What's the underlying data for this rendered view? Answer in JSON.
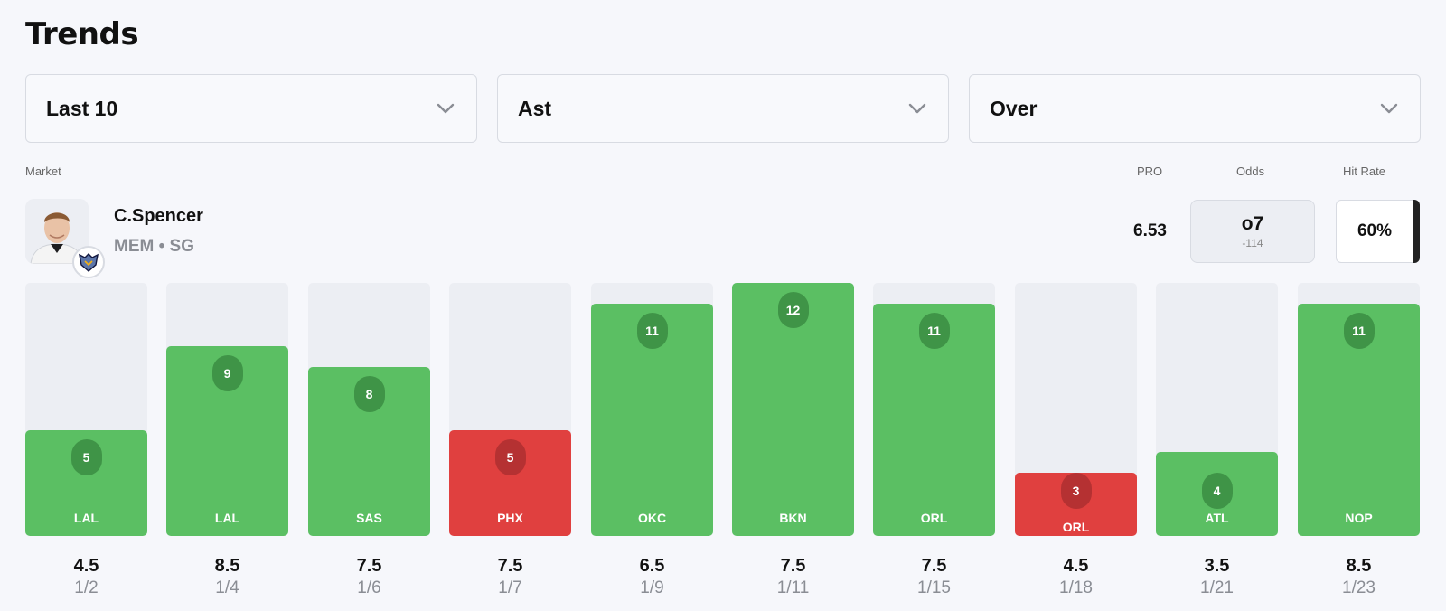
{
  "title": "Trends",
  "filters": [
    {
      "label": "Last 10"
    },
    {
      "label": "Ast"
    },
    {
      "label": "Over"
    }
  ],
  "labels": {
    "market": "Market",
    "pro": "PRO",
    "odds": "Odds",
    "hit_rate": "Hit Rate"
  },
  "player": {
    "name": "C.Spencer",
    "team_pos": "MEM • SG",
    "pro": "6.53",
    "odds_main": "o7",
    "odds_sub": "-114",
    "hit_rate": "60%"
  },
  "colors": {
    "hit": "#5bbf63",
    "miss": "#e0403f",
    "track": "#eceef3"
  },
  "chart_data": {
    "type": "bar",
    "title": "Trends",
    "max_value": 12,
    "categories": [
      "LAL",
      "LAL",
      "SAS",
      "PHX",
      "OKC",
      "BKN",
      "ORL",
      "ORL",
      "ATL",
      "NOP"
    ],
    "values": [
      5,
      9,
      8,
      5,
      11,
      12,
      11,
      3,
      4,
      11
    ],
    "lines": [
      "4.5",
      "8.5",
      "7.5",
      "7.5",
      "6.5",
      "7.5",
      "7.5",
      "4.5",
      "3.5",
      "8.5"
    ],
    "dates": [
      "1/2",
      "1/4",
      "1/6",
      "1/7",
      "1/9",
      "1/11",
      "1/15",
      "1/18",
      "1/21",
      "1/23"
    ],
    "result": [
      "hit",
      "hit",
      "hit",
      "miss",
      "hit",
      "hit",
      "hit",
      "miss",
      "hit",
      "hit"
    ]
  }
}
